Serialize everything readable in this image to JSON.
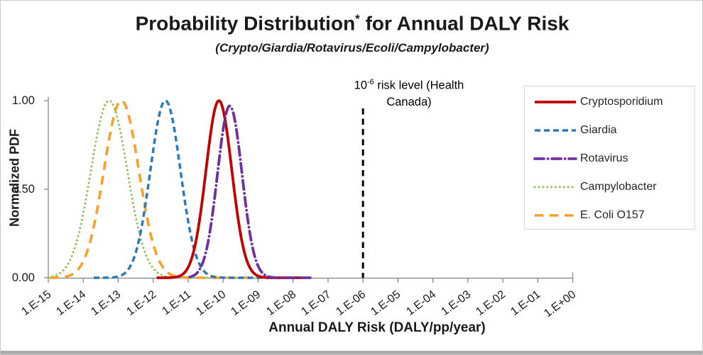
{
  "title": {
    "main": "Probability Distribution",
    "sup": "*",
    "rest": " for Annual DALY Risk"
  },
  "subtitle": "(Crypto/Giardia/Rotavirus/Ecoli/Campylobacter)",
  "annotation": {
    "prefix": "10",
    "sup": "-6",
    "rest": " risk level (Health",
    "line2": "Canada)"
  },
  "axes": {
    "x": {
      "title": "Annual DALY Risk (DALY/pp/year)",
      "scale": "log10",
      "ticks": [
        {
          "label": "1.E-15",
          "exponent": -15
        },
        {
          "label": "1.E-14",
          "exponent": -14
        },
        {
          "label": "1.E-13",
          "exponent": -13
        },
        {
          "label": "1.E-12",
          "exponent": -12
        },
        {
          "label": "1.E-11",
          "exponent": -11
        },
        {
          "label": "1.E-10",
          "exponent": -10
        },
        {
          "label": "1.E-09",
          "exponent": -9
        },
        {
          "label": "1.E-08",
          "exponent": -8
        },
        {
          "label": "1.E-07",
          "exponent": -7
        },
        {
          "label": "1.E-06",
          "exponent": -6
        },
        {
          "label": "1.E-05",
          "exponent": -5
        },
        {
          "label": "1.E-04",
          "exponent": -4
        },
        {
          "label": "1.E-03",
          "exponent": -3
        },
        {
          "label": "1.E-02",
          "exponent": -2
        },
        {
          "label": "1.E-01",
          "exponent": -1
        },
        {
          "label": "1.E+00",
          "exponent": 0
        }
      ]
    },
    "y": {
      "title": "Normalized PDF",
      "ticks": [
        {
          "label": "1.00",
          "value": 1.0
        },
        {
          "label": "0.50",
          "value": 0.5
        },
        {
          "label": "0.00",
          "value": 0.0
        }
      ]
    }
  },
  "chart_data": {
    "type": "line",
    "title": "Probability Distribution* for Annual DALY Risk",
    "subtitle": "(Crypto/Giardia/Rotavirus/Ecoli/Campylobacter)",
    "xlabel": "Annual DALY Risk (DALY/pp/year)",
    "ylabel": "Normalized PDF",
    "x_scale": "log",
    "xlim": [
      1e-15,
      1.0
    ],
    "ylim": [
      0,
      1.0
    ],
    "grid": false,
    "legend_position": "right",
    "curve_model": "gaussian_in_log10_x",
    "reference_line": {
      "x": 1e-06,
      "label": "10-6 risk level (Health Canada)",
      "style": "dashed",
      "color": "#000000",
      "dash": "8.5 6",
      "width": 3
    },
    "series": [
      {
        "name": "Cryptosporidium",
        "color": "#C00000",
        "style": "solid",
        "peak_x": 7.6e-11,
        "peak_log10": -10.12,
        "sigma_decades": 0.37,
        "peak_y": 1.0,
        "x_draw_log10": [
          -11.9,
          -7.75
        ],
        "line_width": 3.8,
        "draw_order": 4
      },
      {
        "name": "Giardia",
        "color": "#2E79BA",
        "style": "dashed",
        "peak_x": 2.2e-12,
        "peak_log10": -11.65,
        "sigma_decades": 0.43,
        "peak_y": 1.0,
        "x_draw_log10": [
          -13.7,
          -7.75
        ],
        "line_width": 3.5,
        "draw_order": 3
      },
      {
        "name": "Rotavirus",
        "color": "#7030A0",
        "style": "dashdot",
        "peak_x": 1.55e-10,
        "peak_log10": -9.81,
        "sigma_decades": 0.35,
        "peak_y": 0.97,
        "x_draw_log10": [
          -10.95,
          -7.5
        ],
        "line_width": 3.8,
        "draw_order": 5
      },
      {
        "name": "Campylobacter",
        "color": "#8DC05A",
        "style": "dotted",
        "peak_x": 5.5e-14,
        "peak_log10": -13.26,
        "sigma_decades": 0.52,
        "peak_y": 1.0,
        "x_draw_log10": [
          -15.0,
          -9.6
        ],
        "line_width": 3.0,
        "draw_order": 1
      },
      {
        "name": "E. Coli O157",
        "color": "#F9A02B",
        "style": "longdash",
        "peak_x": 1.2e-13,
        "peak_log10": -12.91,
        "sigma_decades": 0.5,
        "peak_y": 1.0,
        "x_draw_log10": [
          -14.95,
          -8.9
        ],
        "line_width": 3.6,
        "draw_order": 2
      }
    ]
  }
}
